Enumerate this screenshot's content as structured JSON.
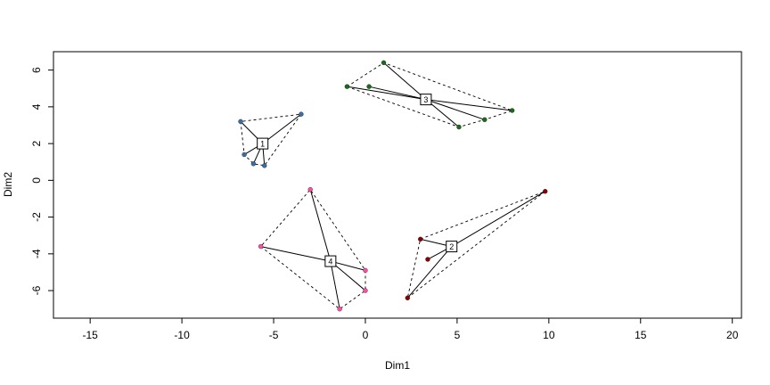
{
  "chart_data": {
    "type": "scatter",
    "title": "",
    "xlabel": "Dim1",
    "ylabel": "Dim2",
    "xlim": [
      -17,
      20.5
    ],
    "ylim": [
      -7.5,
      7
    ],
    "xticks": [
      -15,
      -10,
      -5,
      0,
      5,
      10,
      15,
      20
    ],
    "xtick_labels": [
      "-15",
      "-10",
      "-5",
      "0",
      "5",
      "10",
      "15",
      "20"
    ],
    "yticks": [
      -6,
      -4,
      -2,
      0,
      2,
      4,
      6
    ],
    "ytick_labels": [
      "-6",
      "-4",
      "-2",
      "0",
      "2",
      "4",
      "6"
    ],
    "grid": false,
    "clusters": [
      {
        "label": "1",
        "color": "#3a6ea5",
        "centroid": [
          -5.6,
          2.0
        ],
        "points": [
          [
            -6.8,
            3.2
          ],
          [
            -3.5,
            3.6
          ],
          [
            -6.6,
            1.4
          ],
          [
            -6.1,
            0.9
          ],
          [
            -5.5,
            0.8
          ]
        ]
      },
      {
        "label": "2",
        "color": "#8b0000",
        "centroid": [
          4.7,
          -3.6
        ],
        "points": [
          [
            9.8,
            -0.6
          ],
          [
            3.0,
            -3.2
          ],
          [
            3.4,
            -4.3
          ],
          [
            2.3,
            -6.4
          ]
        ]
      },
      {
        "label": "3",
        "color": "#1a6b1a",
        "centroid": [
          3.3,
          4.4
        ],
        "points": [
          [
            1.0,
            6.4
          ],
          [
            -1.0,
            5.1
          ],
          [
            0.2,
            5.1
          ],
          [
            8.0,
            3.8
          ],
          [
            6.5,
            3.3
          ],
          [
            5.1,
            2.9
          ]
        ]
      },
      {
        "label": "4",
        "color": "#ff4fa3",
        "centroid": [
          -1.9,
          -4.4
        ],
        "points": [
          [
            -3.0,
            -0.5
          ],
          [
            -5.7,
            -3.6
          ],
          [
            0.0,
            -4.9
          ],
          [
            0.0,
            -6.0
          ],
          [
            -1.4,
            -7.0
          ]
        ]
      }
    ]
  }
}
